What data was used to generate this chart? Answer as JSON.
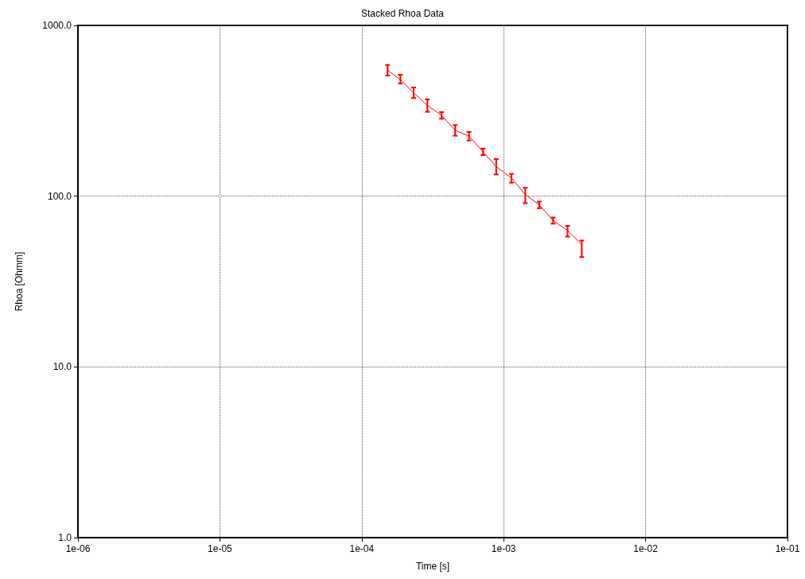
{
  "chart_data": {
    "type": "line",
    "title": "Stacked Rhoa Data",
    "xlabel": "Time [s]",
    "ylabel": "Rhoa [Ohmm]",
    "log": "xy",
    "grid": true,
    "marker": "none",
    "line_style": "solid",
    "xlim": [
      1e-06,
      0.1
    ],
    "ylim": [
      1,
      1000
    ],
    "xticks": [
      {
        "value": 1e-06,
        "label": "1e-06"
      },
      {
        "value": 1e-05,
        "label": "1e-05"
      },
      {
        "value": 0.0001,
        "label": "1e-04"
      },
      {
        "value": 0.001,
        "label": "1e-03"
      },
      {
        "value": 0.01,
        "label": "1e-02"
      },
      {
        "value": 0.1,
        "label": "1e-01"
      }
    ],
    "yticks": [
      {
        "value": 1,
        "label": "1.0"
      },
      {
        "value": 10,
        "label": "10.0"
      },
      {
        "value": 100,
        "label": "100.0"
      },
      {
        "value": 1000,
        "label": "1000.0"
      }
    ],
    "series": [
      {
        "color": "#ff0000",
        "x": [
          0.000152,
          0.000187,
          0.000232,
          0.00029,
          0.000365,
          0.000455,
          0.00057,
          0.000715,
          0.000886,
          0.001135,
          0.00142,
          0.00178,
          0.00223,
          0.00282,
          0.00355
        ],
        "values": [
          547,
          482,
          403,
          340,
          298,
          243,
          225,
          182,
          149,
          128,
          102,
          89,
          72,
          63,
          52
        ],
        "errors": [
          [
            509,
            587
          ],
          [
            457,
            514
          ],
          [
            376,
            433
          ],
          [
            312,
            369
          ],
          [
            284,
            311
          ],
          [
            226,
            261
          ],
          [
            212,
            238
          ],
          [
            174,
            190
          ],
          [
            134,
            165
          ],
          [
            120,
            135
          ],
          [
            91,
            112
          ],
          [
            85,
            93
          ],
          [
            69,
            75
          ],
          [
            58,
            67
          ],
          [
            44,
            55
          ]
        ]
      }
    ]
  }
}
